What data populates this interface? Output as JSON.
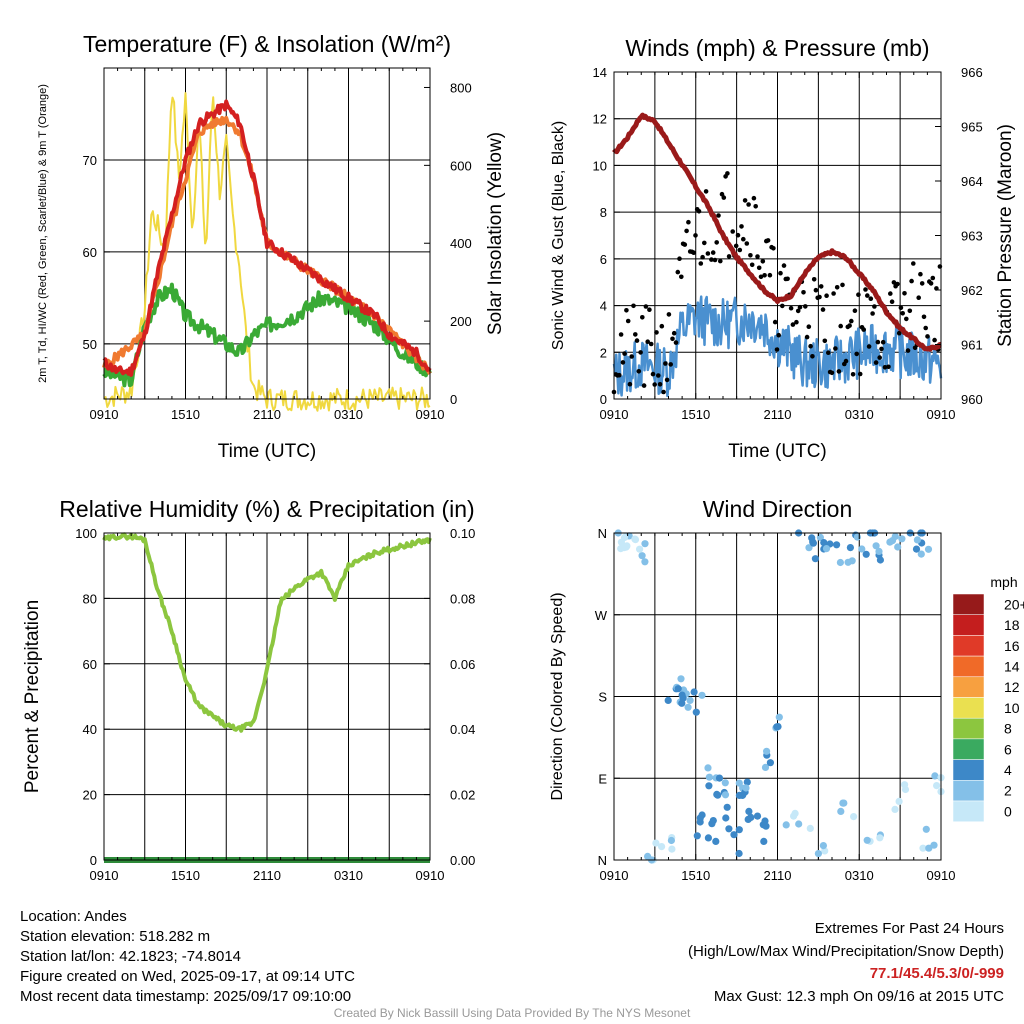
{
  "chart_data": [
    {
      "type": "line",
      "title": "Temperature (F) & Insolation (W/m²)",
      "xlabel": "Time (UTC)",
      "ylabel": "2m T, Td, HI/WC (Red, Green, Scarlet/Blue) & 9m T (Orange)",
      "y2label": "Solar Insolation (Yellow)",
      "x_ticks": [
        "0910",
        "1510",
        "2110",
        "0310",
        "0910"
      ],
      "ylim": [
        44,
        80
      ],
      "y_ticks": [
        50,
        60,
        70
      ],
      "y2lim": [
        0,
        850
      ],
      "y2_ticks": [
        0,
        200,
        400,
        600,
        800
      ],
      "series": [
        {
          "name": "2m T",
          "color": "#d42020",
          "x_hours": [
            0,
            1,
            2,
            3,
            4,
            5,
            6,
            7,
            8,
            9,
            10,
            11,
            12,
            13,
            14,
            15,
            16,
            17,
            18,
            19,
            20,
            21,
            22,
            23,
            24
          ],
          "values": [
            48,
            47,
            47,
            51,
            58,
            64,
            70,
            74,
            75,
            76,
            74,
            68,
            61,
            60,
            59,
            58,
            57,
            56,
            55,
            54,
            53,
            51,
            50,
            49,
            47
          ]
        },
        {
          "name": "9m T",
          "color": "#f07a30",
          "x_hours": [
            0,
            3,
            5,
            7,
            8,
            9,
            10,
            11,
            12,
            14,
            16,
            18,
            20,
            22,
            24
          ],
          "values": [
            47.5,
            51,
            63,
            73,
            74,
            74.5,
            73,
            68,
            61,
            59,
            57,
            55,
            53,
            50,
            47
          ]
        },
        {
          "name": "2m Td",
          "color": "#3aaa35",
          "x_hours": [
            0,
            2,
            3,
            4,
            5,
            6,
            7,
            8,
            9,
            10,
            11,
            12,
            14,
            16,
            18,
            20,
            22,
            24
          ],
          "values": [
            47,
            46,
            52,
            55,
            56,
            53,
            52,
            51,
            50,
            49,
            51,
            52,
            53,
            55,
            54,
            52,
            49,
            47
          ]
        },
        {
          "name": "Solar Insolation",
          "axis": "y2",
          "color": "#f0d840",
          "x_hours": [
            0,
            2,
            3,
            3.5,
            4,
            4.5,
            5,
            5.5,
            6,
            6.5,
            7,
            7.5,
            8,
            8.5,
            9,
            9.5,
            10,
            10.5,
            11,
            12,
            24
          ],
          "values": [
            0,
            20,
            230,
            480,
            440,
            370,
            820,
            560,
            770,
            430,
            720,
            360,
            800,
            530,
            650,
            460,
            340,
            150,
            30,
            0,
            0
          ]
        }
      ]
    },
    {
      "type": "line",
      "title": "Winds (mph) & Pressure (mb)",
      "xlabel": "Time (UTC)",
      "ylabel": "Sonic Wind & Gust (Blue, Black)",
      "y2label": "Station Pressure (Maroon)",
      "x_ticks": [
        "0910",
        "1510",
        "2110",
        "0310",
        "0910"
      ],
      "ylim": [
        0,
        14
      ],
      "y_ticks": [
        0,
        2,
        4,
        6,
        8,
        10,
        12,
        14
      ],
      "y2lim": [
        960,
        966
      ],
      "y2_ticks": [
        960,
        961,
        962,
        963,
        964,
        965,
        966
      ],
      "series": [
        {
          "name": "Sonic Wind",
          "color": "#4a90d0",
          "x_hours": [
            0,
            2,
            4,
            5,
            6,
            8,
            10,
            11,
            12,
            14,
            16,
            18,
            20,
            22,
            24
          ],
          "values": [
            1,
            1.5,
            1.2,
            3,
            3.5,
            3.2,
            3.5,
            3.2,
            2.5,
            1.5,
            1.5,
            2,
            2.2,
            1.8,
            1.5
          ]
        },
        {
          "name": "Gust",
          "color": "#000000",
          "x_hours": [
            0,
            2,
            4,
            5,
            6,
            8,
            10,
            11,
            12,
            14,
            16,
            18,
            20,
            22,
            24
          ],
          "values": [
            2,
            2,
            1.8,
            5,
            7,
            8,
            8,
            6,
            4,
            4,
            3,
            3,
            3,
            4,
            4
          ]
        },
        {
          "name": "Station Pressure",
          "axis": "y2",
          "color": "#9a1a1a",
          "x_hours": [
            0,
            1,
            2,
            3,
            4,
            5,
            6,
            7,
            8,
            9,
            10,
            11,
            12,
            13,
            14,
            15,
            16,
            17,
            18,
            19,
            20,
            21,
            22,
            23,
            24
          ],
          "values": [
            964.5,
            964.8,
            965.2,
            965.1,
            964.7,
            964.3,
            963.9,
            963.5,
            963.0,
            962.6,
            962.3,
            962.0,
            961.8,
            961.9,
            962.3,
            962.6,
            962.7,
            962.6,
            962.3,
            962.0,
            961.6,
            961.3,
            961.1,
            960.9,
            961.0
          ]
        }
      ]
    },
    {
      "type": "line",
      "title": "Relative Humidity (%) & Precipitation (in)",
      "ylabel": "Percent & Precipitation",
      "x_ticks": [
        "0910",
        "1510",
        "2110",
        "0310",
        "0910"
      ],
      "ylim": [
        0,
        100
      ],
      "y_ticks": [
        0,
        20,
        40,
        60,
        80,
        100
      ],
      "y2lim": [
        0,
        0.1
      ],
      "y2_ticks": [
        "0.00",
        "0.02",
        "0.04",
        "0.06",
        "0.08",
        "0.10"
      ],
      "series": [
        {
          "name": "Relative Humidity",
          "color": "#8cc63f",
          "x_hours": [
            0,
            1,
            2,
            3,
            4,
            5,
            6,
            7,
            8,
            9,
            10,
            11,
            12,
            13,
            14,
            15,
            16,
            17,
            18,
            19,
            20,
            21,
            22,
            23,
            24
          ],
          "values": [
            98,
            99,
            99,
            98,
            82,
            70,
            55,
            47,
            44,
            41,
            40,
            42,
            58,
            79,
            83,
            86,
            88,
            80,
            90,
            92,
            94,
            95,
            96,
            97,
            98
          ]
        },
        {
          "name": "Precipitation",
          "axis": "y2",
          "color": "#2e8b3a",
          "x_hours": [
            0,
            24
          ],
          "values": [
            0,
            0
          ]
        }
      ]
    },
    {
      "type": "scatter",
      "title": "Wind Direction",
      "ylabel": "Direction (Colored By Speed)",
      "x_ticks": [
        "0910",
        "1510",
        "2110",
        "0310",
        "0910"
      ],
      "y_ticks": [
        "N",
        "E",
        "S",
        "W",
        "N"
      ],
      "ylim": [
        0,
        360
      ],
      "legend": {
        "unit": "mph",
        "labels": [
          "0",
          "2",
          "4",
          "6",
          "8",
          "10",
          "12",
          "14",
          "16",
          "18",
          "20+"
        ],
        "colors": [
          "#c6e8f8",
          "#84c0e8",
          "#3d88c8",
          "#3aaa60",
          "#8cc63f",
          "#eae050",
          "#f7a040",
          "#f06a28",
          "#e03a28",
          "#c41e1e",
          "#961a1a"
        ],
        "placement": "right"
      },
      "groups": [
        {
          "x_hours": [
            0.5,
            1,
            1.5,
            2,
            3,
            4
          ],
          "dir": [
            355,
            350,
            345,
            340,
            5,
            10
          ],
          "speed": 1
        },
        {
          "x_hours": [
            4.5,
            5,
            5.5,
            6,
            7,
            8,
            9,
            10,
            11,
            12
          ],
          "dir": [
            185,
            180,
            175,
            170,
            90,
            80,
            70,
            75,
            110,
            150
          ],
          "speed": 3
        },
        {
          "x_hours": [
            6,
            7,
            8,
            9,
            10,
            11
          ],
          "dir": [
            40,
            30,
            60,
            20,
            45,
            35
          ],
          "speed": 4
        },
        {
          "x_hours": [
            14,
            15,
            16,
            17,
            18,
            19,
            20,
            21,
            22,
            23
          ],
          "dir": [
            350,
            345,
            355,
            340,
            350,
            355,
            345,
            350,
            355,
            350
          ],
          "speed": 3
        },
        {
          "x_hours": [
            13,
            15,
            17,
            19,
            21,
            23,
            24
          ],
          "dir": [
            40,
            20,
            60,
            30,
            70,
            20,
            90
          ],
          "speed": 1
        }
      ]
    }
  ],
  "info": {
    "location": "Location: Andes",
    "elevation": "Station elevation: 518.282 m",
    "latlon": "Station lat/lon: 42.1823; -74.8014",
    "created": "Figure created on Wed, 2025-09-17, at 09:14 UTC",
    "recent": "Most recent data timestamp: 2025/09/17 09:10:00"
  },
  "extremes": {
    "title": "Extremes For Past 24 Hours",
    "subtitle": "(High/Low/Max Wind/Precipitation/Snow Depth)",
    "values": "77.1/45.4/5.3/0/-999",
    "gust": "Max Gust: 12.3 mph On 09/16 at 2015 UTC"
  },
  "credit": "Created By Nick Bassill Using Data Provided By The NYS Mesonet"
}
